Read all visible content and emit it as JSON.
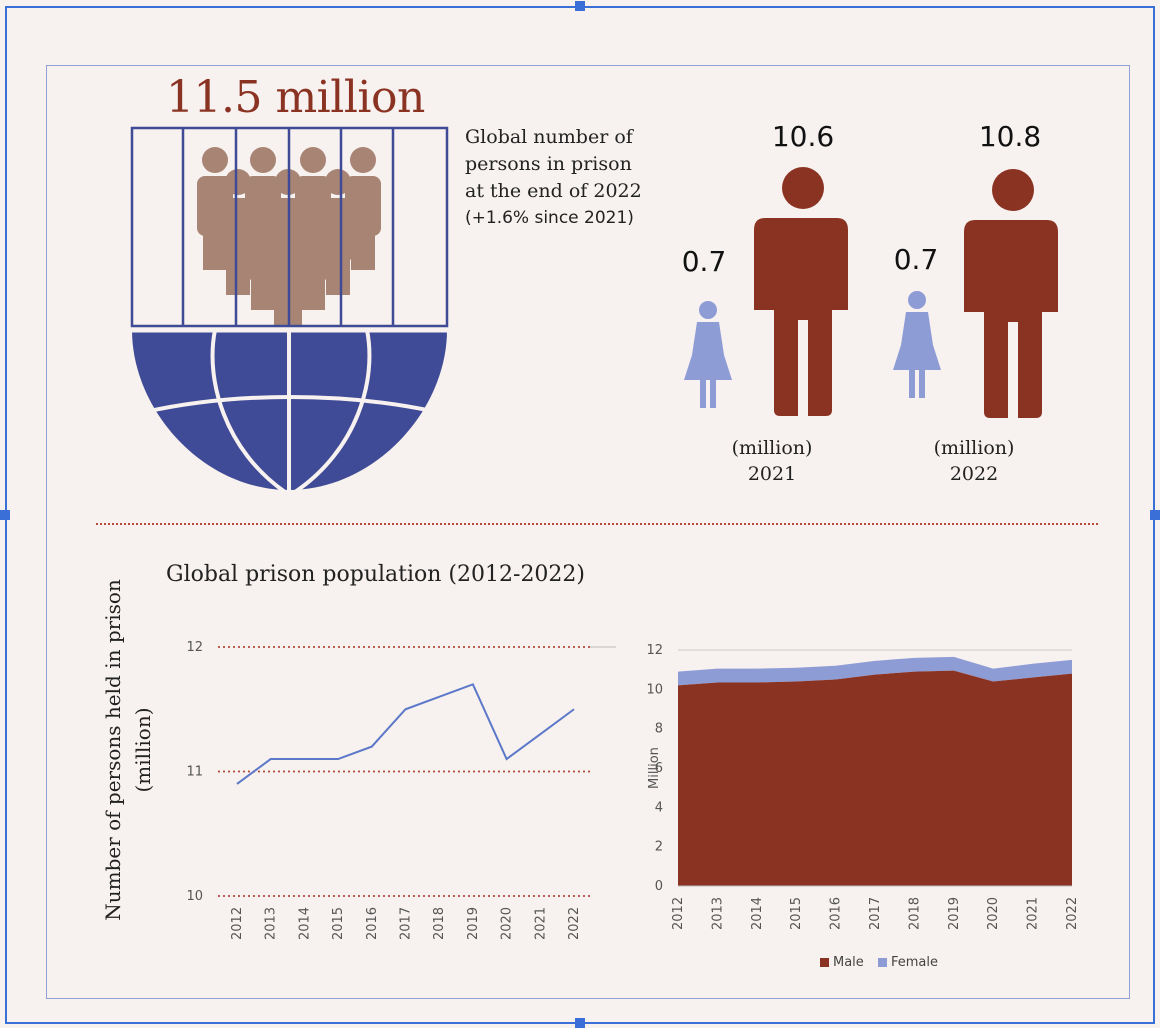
{
  "headline": "11.5 million",
  "blurb_lines": [
    "Global number of",
    "persons in prison",
    "at the end of 2022",
    "(+1.6% since 2021)"
  ],
  "figures": [
    {
      "female": "0.7",
      "male": "10.6",
      "unit": "(million)",
      "year": "2021"
    },
    {
      "female": "0.7",
      "male": "10.8",
      "unit": "(million)",
      "year": "2022"
    }
  ],
  "colors": {
    "male": "#8b3323",
    "female": "#8e9cd6",
    "globe": "#3f4b96",
    "people": "#a88475",
    "line": "#5b78c9",
    "accent_dotted": "#b54a3a"
  },
  "icons": [
    "prison-bars-icon",
    "globe-icon",
    "crowd-icon",
    "woman-icon",
    "man-icon"
  ],
  "chart_data": [
    {
      "type": "line",
      "title": "Global prison population (2012-2022)",
      "ylabel": "Number of persons held in prison (million)",
      "xlabel": "",
      "x": [
        "2012",
        "2013",
        "2014",
        "2015",
        "2016",
        "2017",
        "2018",
        "2019",
        "2020",
        "2021",
        "2022"
      ],
      "series": [
        {
          "values": [
            10.9,
            11.1,
            11.1,
            11.1,
            11.2,
            11.5,
            11.6,
            11.7,
            11.1,
            11.3,
            11.5
          ]
        }
      ],
      "ylim": [
        10,
        12
      ],
      "yticks": [
        "10",
        "11",
        "12"
      ],
      "grid": "dotted"
    },
    {
      "type": "area",
      "stacked": true,
      "ylabel": "Million",
      "x": [
        "2012",
        "2013",
        "2014",
        "2015",
        "2016",
        "2017",
        "2018",
        "2019",
        "2020",
        "2021",
        "2022"
      ],
      "series": [
        {
          "name": "Male",
          "values": [
            10.2,
            10.35,
            10.35,
            10.4,
            10.5,
            10.75,
            10.9,
            10.95,
            10.4,
            10.6,
            10.8
          ]
        },
        {
          "name": "Female",
          "values": [
            0.7,
            0.7,
            0.7,
            0.7,
            0.7,
            0.7,
            0.7,
            0.7,
            0.65,
            0.7,
            0.7
          ]
        }
      ],
      "ylim": [
        0,
        12
      ],
      "yticks": [
        "0",
        "2",
        "4",
        "6",
        "8",
        "10",
        "12"
      ],
      "legend": "bottom"
    }
  ]
}
